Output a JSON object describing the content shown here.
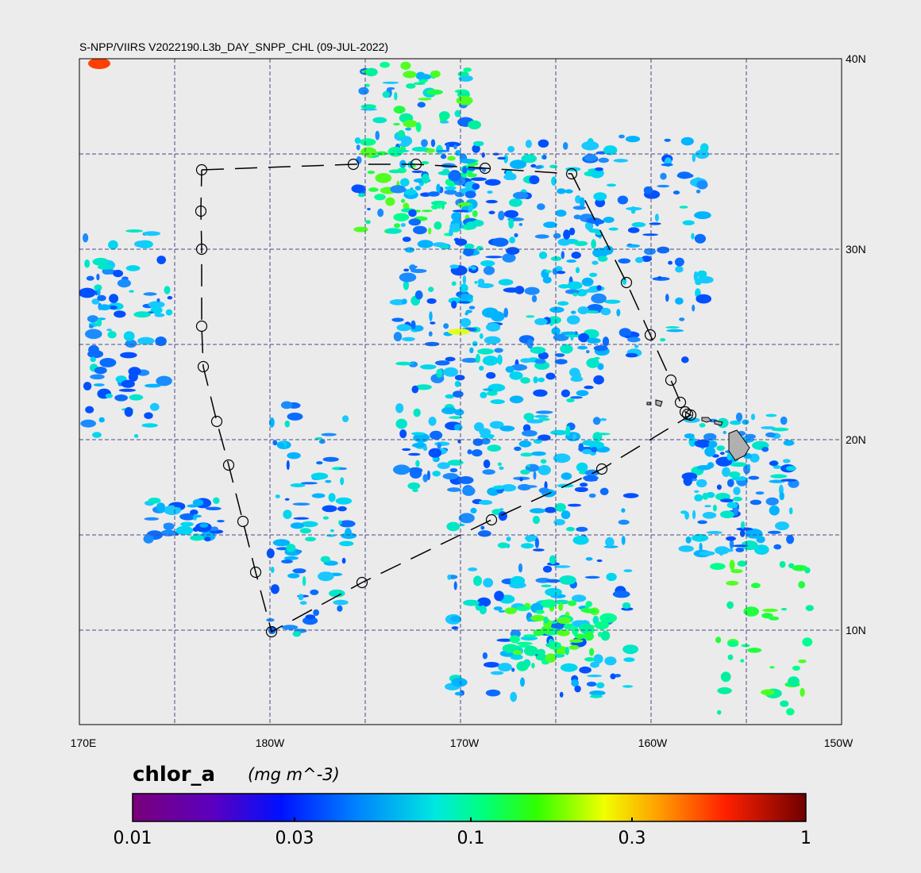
{
  "title": "S-NPP/VIIRS V2022190.L3b_DAY_SNPP_CHL (09-JUL-2022)",
  "map": {
    "longitude_labels": [
      "170E",
      "180W",
      "170W",
      "160W",
      "150W"
    ],
    "latitude_labels": [
      "40N",
      "30N",
      "20N",
      "10N"
    ]
  },
  "colorbar": {
    "variable": "chlor_a",
    "units": "(mg m^-3)",
    "tick_labels": [
      "0.01",
      "0.03",
      "0.1",
      "0.3",
      "1"
    ]
  }
}
